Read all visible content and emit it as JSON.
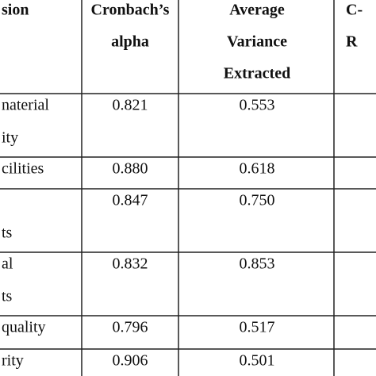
{
  "table": {
    "header": [
      [
        "sion"
      ],
      [
        "Cronbach’s",
        "alpha"
      ],
      [
        "Average",
        "Variance",
        "Extracted"
      ],
      [
        "C-",
        "R"
      ]
    ],
    "rows": [
      [
        [
          "naterial",
          "ity"
        ],
        "0.821",
        "0.553"
      ],
      [
        [
          "cilities"
        ],
        "0.880",
        "0.618"
      ],
      [
        [
          "ts"
        ],
        "0.847",
        "0.750"
      ],
      [
        [
          "al",
          "ts"
        ],
        "0.832",
        "0.853"
      ],
      [
        [
          "quality"
        ],
        "0.796",
        "0.517"
      ],
      [
        [
          "rity"
        ],
        "0.906",
        "0.501"
      ]
    ]
  }
}
